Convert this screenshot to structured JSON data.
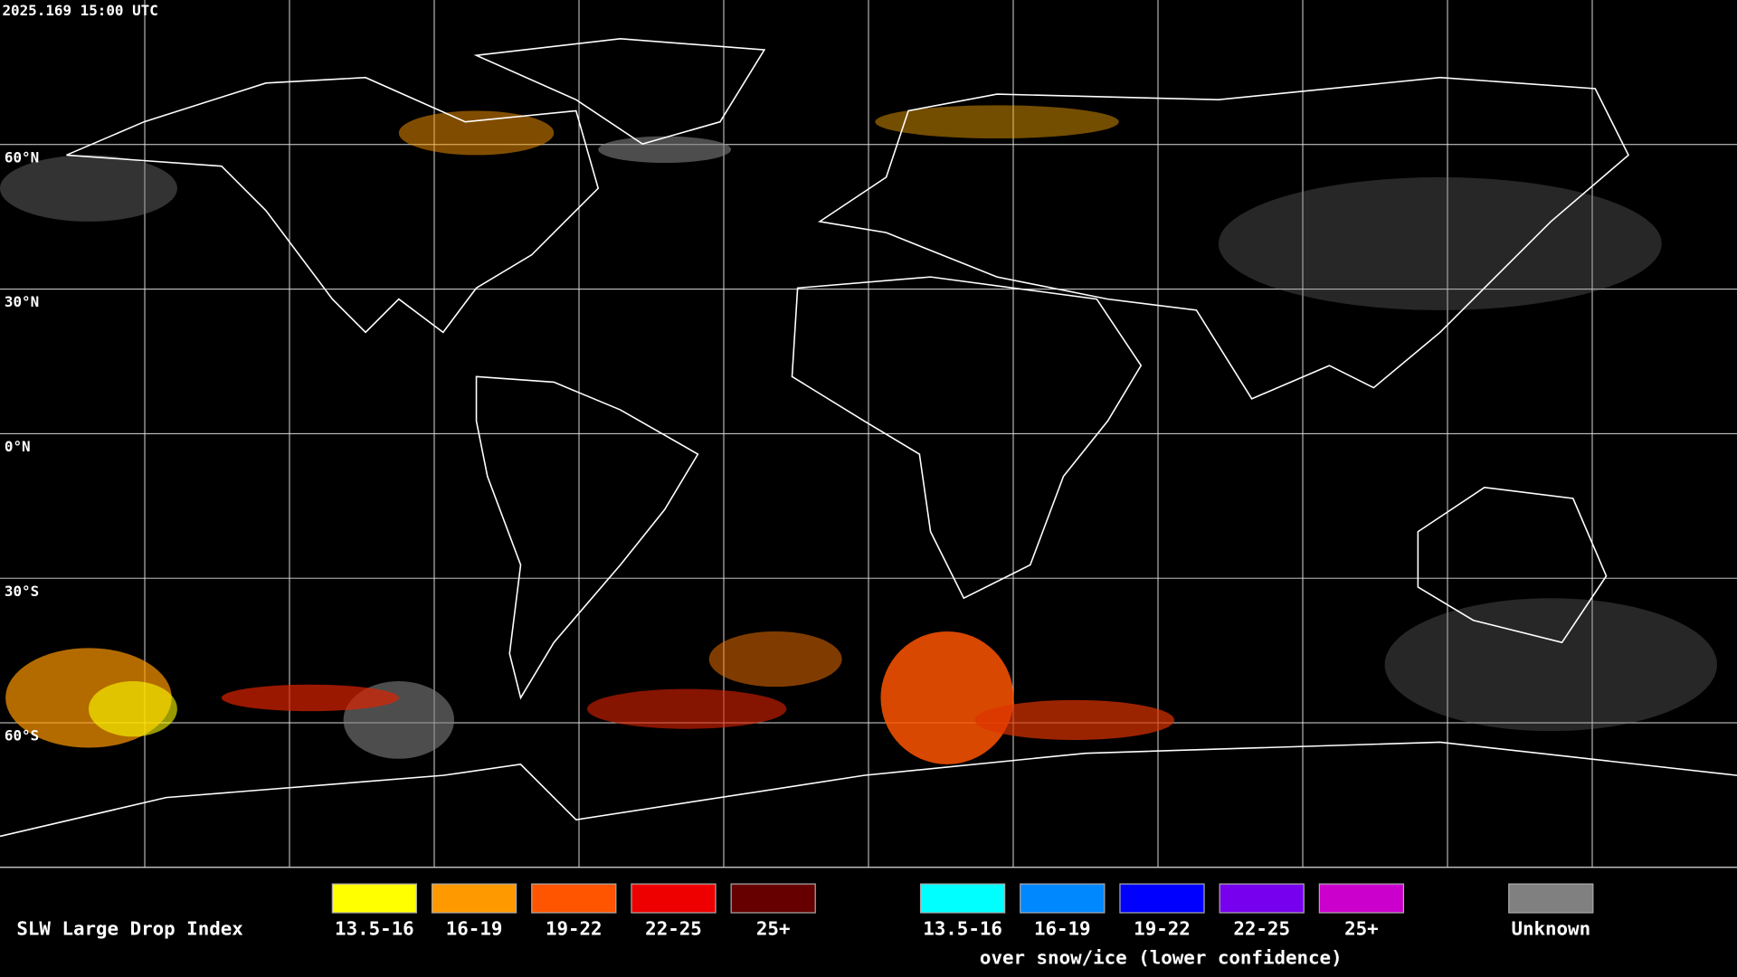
{
  "timestamp": "2025.169 15:00 UTC",
  "latitude_labels": [
    "60°N",
    "30°N",
    "0°N",
    "30°S",
    "60°S"
  ],
  "legend": {
    "title": "SLW Large Drop Index",
    "items": [
      {
        "label": "13.5-16",
        "color": "#ffff00"
      },
      {
        "label": "16-19",
        "color": "#ff9900"
      },
      {
        "label": "19-22",
        "color": "#ff5500"
      },
      {
        "label": "22-25",
        "color": "#ee0000"
      },
      {
        "label": "25+",
        "color": "#660000"
      }
    ],
    "snow_items": [
      {
        "label": "13.5-16",
        "color": "#00ffff"
      },
      {
        "label": "16-19",
        "color": "#0088ff"
      },
      {
        "label": "19-22",
        "color": "#0000ff"
      },
      {
        "label": "22-25",
        "color": "#7700ee"
      },
      {
        "label": "25+",
        "color": "#cc00cc"
      }
    ],
    "snow_caption": "over snow/ice (lower confidence)",
    "unknown": {
      "label": "Unknown",
      "color": "#808080"
    }
  }
}
